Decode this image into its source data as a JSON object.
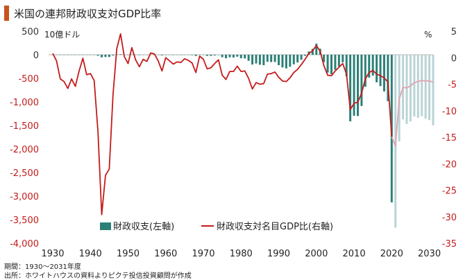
{
  "title": "米国の連邦財政収支対GDP比率",
  "footnotes": {
    "period": "期間：1930～2031年度",
    "source": "出所：ホワイトハウスの資料よりピクテ投信投資顧問が作成"
  },
  "chart_data": {
    "type": "bar+line",
    "left_axis": {
      "unit": "10億ドル",
      "range": [
        -4000,
        500
      ],
      "ticks": [
        500,
        0,
        -500,
        -1000,
        -1500,
        -2000,
        -2500,
        -3000,
        -3500,
        -4000
      ],
      "tick_labels": [
        "500",
        "0",
        "-500",
        "-1,000",
        "-1,500",
        "-2,000",
        "-2,500",
        "-3,000",
        "-3,500",
        "-4,000"
      ]
    },
    "right_axis": {
      "unit": "%",
      "range": [
        -35,
        5
      ],
      "ticks": [
        5,
        0,
        -5,
        -10,
        -15,
        -20,
        -25,
        -30,
        -35
      ],
      "tick_labels": [
        "5",
        "0",
        "-5",
        "-10",
        "-15",
        "-20",
        "-25",
        "-30",
        "-35"
      ]
    },
    "x_axis": {
      "range": [
        1930,
        2031
      ],
      "ticks": [
        1930,
        1940,
        1950,
        1960,
        1970,
        1980,
        1990,
        2000,
        2010,
        2020,
        2030
      ],
      "tick_labels": [
        "1930",
        "1940",
        "1950",
        "1960",
        "1970",
        "1980",
        "1990",
        "2000",
        "2010",
        "2020",
        "2030"
      ]
    },
    "legend": {
      "bar_label": "財政収支(左軸)",
      "line_label": "財政収支対名目GDP比(右軸)"
    },
    "colors": {
      "bar_actual": "#2b7f77",
      "bar_forecast": "#b9d3d5",
      "line_actual": "#c41a1a",
      "line_forecast": "#e0a3ae",
      "axis_left": "#c41a1a",
      "axis_right": "#c41a1a"
    },
    "forecast_start_year": 2021,
    "balance_billion_usd": [
      [
        1930,
        1
      ],
      [
        1931,
        -2
      ],
      [
        1932,
        -3
      ],
      [
        1933,
        -3
      ],
      [
        1934,
        -4
      ],
      [
        1935,
        -3
      ],
      [
        1936,
        -4
      ],
      [
        1937,
        -3
      ],
      [
        1938,
        -0.1
      ],
      [
        1939,
        -3
      ],
      [
        1940,
        -3
      ],
      [
        1941,
        -5
      ],
      [
        1942,
        -20
      ],
      [
        1943,
        -55
      ],
      [
        1944,
        -48
      ],
      [
        1945,
        -48
      ],
      [
        1946,
        -16
      ],
      [
        1947,
        4
      ],
      [
        1948,
        12
      ],
      [
        1949,
        1
      ],
      [
        1950,
        -3
      ],
      [
        1951,
        6
      ],
      [
        1952,
        -2
      ],
      [
        1953,
        -7
      ],
      [
        1954,
        -1
      ],
      [
        1955,
        -3
      ],
      [
        1956,
        4
      ],
      [
        1957,
        3
      ],
      [
        1958,
        -3
      ],
      [
        1959,
        -13
      ],
      [
        1960,
        0
      ],
      [
        1961,
        -3
      ],
      [
        1962,
        -7
      ],
      [
        1963,
        -5
      ],
      [
        1964,
        -6
      ],
      [
        1965,
        -1
      ],
      [
        1966,
        -4
      ],
      [
        1967,
        -9
      ],
      [
        1968,
        -25
      ],
      [
        1969,
        3
      ],
      [
        1970,
        -3
      ],
      [
        1971,
        -23
      ],
      [
        1972,
        -23
      ],
      [
        1973,
        -15
      ],
      [
        1974,
        -6
      ],
      [
        1975,
        -53
      ],
      [
        1976,
        -74
      ],
      [
        1977,
        -54
      ],
      [
        1978,
        -59
      ],
      [
        1979,
        -41
      ],
      [
        1980,
        -74
      ],
      [
        1981,
        -79
      ],
      [
        1982,
        -128
      ],
      [
        1983,
        -208
      ],
      [
        1984,
        -185
      ],
      [
        1985,
        -212
      ],
      [
        1986,
        -221
      ],
      [
        1987,
        -150
      ],
      [
        1988,
        -155
      ],
      [
        1989,
        -153
      ],
      [
        1990,
        -221
      ],
      [
        1991,
        -269
      ],
      [
        1992,
        -290
      ],
      [
        1993,
        -255
      ],
      [
        1994,
        -203
      ],
      [
        1995,
        -164
      ],
      [
        1996,
        -107
      ],
      [
        1997,
        -22
      ],
      [
        1998,
        69
      ],
      [
        1999,
        126
      ],
      [
        2000,
        236
      ],
      [
        2001,
        128
      ],
      [
        2002,
        -158
      ],
      [
        2003,
        -378
      ],
      [
        2004,
        -413
      ],
      [
        2005,
        -318
      ],
      [
        2006,
        -248
      ],
      [
        2007,
        -161
      ],
      [
        2008,
        -459
      ],
      [
        2009,
        -1413
      ],
      [
        2010,
        -1294
      ],
      [
        2011,
        -1300
      ],
      [
        2012,
        -1087
      ],
      [
        2013,
        -680
      ],
      [
        2014,
        -485
      ],
      [
        2015,
        -442
      ],
      [
        2016,
        -585
      ],
      [
        2017,
        -665
      ],
      [
        2018,
        -779
      ],
      [
        2019,
        -984
      ],
      [
        2020,
        -3132
      ],
      [
        2021,
        -3669
      ],
      [
        2022,
        -1837
      ],
      [
        2023,
        -1372
      ],
      [
        2024,
        -1470
      ],
      [
        2025,
        -1414
      ],
      [
        2026,
        -1309
      ],
      [
        2027,
        -1337
      ],
      [
        2028,
        -1303
      ],
      [
        2029,
        -1358
      ],
      [
        2030,
        -1388
      ],
      [
        2031,
        -1499
      ]
    ],
    "balance_pct_gdp": [
      [
        1930,
        0.8
      ],
      [
        1931,
        -0.6
      ],
      [
        1932,
        -4.0
      ],
      [
        1933,
        -4.5
      ],
      [
        1934,
        -5.8
      ],
      [
        1935,
        -4.0
      ],
      [
        1936,
        -5.4
      ],
      [
        1937,
        -2.5
      ],
      [
        1938,
        -0.1
      ],
      [
        1939,
        -3.2
      ],
      [
        1940,
        -3.0
      ],
      [
        1941,
        -4.3
      ],
      [
        1942,
        -13.9
      ],
      [
        1943,
        -29.6
      ],
      [
        1944,
        -22.2
      ],
      [
        1945,
        -21.0
      ],
      [
        1946,
        -7.0
      ],
      [
        1947,
        1.7
      ],
      [
        1948,
        4.5
      ],
      [
        1949,
        0.2
      ],
      [
        1950,
        -1.1
      ],
      [
        1951,
        1.9
      ],
      [
        1952,
        -0.4
      ],
      [
        1953,
        -1.7
      ],
      [
        1954,
        -0.3
      ],
      [
        1955,
        -0.7
      ],
      [
        1956,
        0.9
      ],
      [
        1957,
        0.7
      ],
      [
        1958,
        -0.6
      ],
      [
        1959,
        -2.5
      ],
      [
        1960,
        0.0
      ],
      [
        1961,
        -0.6
      ],
      [
        1962,
        -1.2
      ],
      [
        1963,
        -0.8
      ],
      [
        1964,
        -0.9
      ],
      [
        1965,
        -0.2
      ],
      [
        1966,
        -0.5
      ],
      [
        1967,
        -1.0
      ],
      [
        1968,
        -2.8
      ],
      [
        1969,
        0.3
      ],
      [
        1970,
        -0.3
      ],
      [
        1971,
        -2.1
      ],
      [
        1972,
        -1.9
      ],
      [
        1973,
        -1.1
      ],
      [
        1974,
        -0.4
      ],
      [
        1975,
        -3.3
      ],
      [
        1976,
        -4.1
      ],
      [
        1977,
        -2.6
      ],
      [
        1978,
        -2.6
      ],
      [
        1979,
        -1.6
      ],
      [
        1980,
        -2.6
      ],
      [
        1981,
        -2.5
      ],
      [
        1982,
        -3.9
      ],
      [
        1983,
        -5.9
      ],
      [
        1984,
        -4.7
      ],
      [
        1985,
        -5.0
      ],
      [
        1986,
        -4.9
      ],
      [
        1987,
        -3.1
      ],
      [
        1988,
        -3.0
      ],
      [
        1989,
        -2.7
      ],
      [
        1990,
        -3.7
      ],
      [
        1991,
        -4.4
      ],
      [
        1992,
        -4.5
      ],
      [
        1993,
        -3.8
      ],
      [
        1994,
        -2.8
      ],
      [
        1995,
        -2.2
      ],
      [
        1996,
        -1.3
      ],
      [
        1997,
        -0.3
      ],
      [
        1998,
        0.8
      ],
      [
        1999,
        1.3
      ],
      [
        2000,
        2.3
      ],
      [
        2001,
        1.2
      ],
      [
        2002,
        -1.5
      ],
      [
        2003,
        -3.3
      ],
      [
        2004,
        -3.4
      ],
      [
        2005,
        -2.5
      ],
      [
        2006,
        -1.8
      ],
      [
        2007,
        -1.1
      ],
      [
        2008,
        -3.1
      ],
      [
        2009,
        -9.8
      ],
      [
        2010,
        -8.6
      ],
      [
        2011,
        -8.4
      ],
      [
        2012,
        -6.7
      ],
      [
        2013,
        -4.0
      ],
      [
        2014,
        -2.8
      ],
      [
        2015,
        -2.4
      ],
      [
        2016,
        -3.1
      ],
      [
        2017,
        -3.4
      ],
      [
        2018,
        -3.8
      ],
      [
        2019,
        -4.6
      ],
      [
        2020,
        -14.9
      ],
      [
        2021,
        -16.7
      ],
      [
        2022,
        -7.8
      ],
      [
        2023,
        -5.6
      ],
      [
        2024,
        -5.7
      ],
      [
        2025,
        -5.3
      ],
      [
        2026,
        -4.7
      ],
      [
        2027,
        -4.5
      ],
      [
        2028,
        -4.3
      ],
      [
        2029,
        -4.4
      ],
      [
        2030,
        -4.4
      ],
      [
        2031,
        -4.6
      ]
    ]
  }
}
